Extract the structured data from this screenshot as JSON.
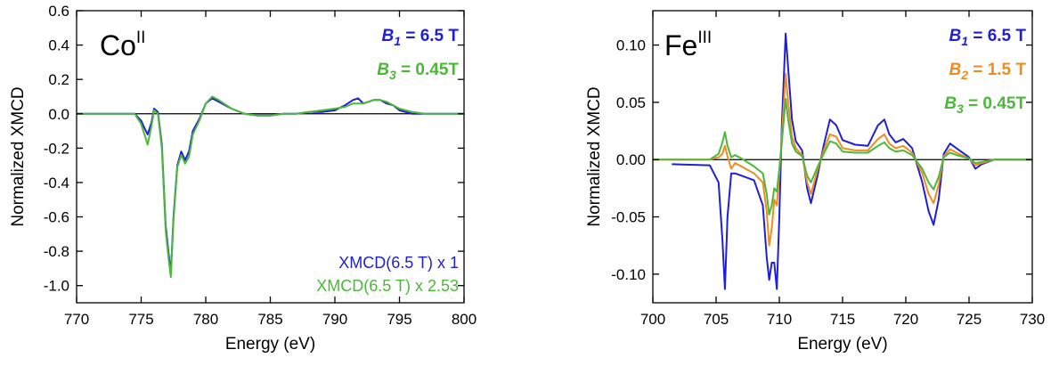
{
  "chart_data": [
    {
      "type": "line",
      "xlabel": "Energy (eV)",
      "ylabel": "Normalized XMCD",
      "xlim": [
        770,
        800
      ],
      "ylim": [
        -1.1,
        0.6
      ],
      "xticks": [
        770,
        775,
        780,
        785,
        790,
        795,
        800
      ],
      "xtick_labels": [
        "770",
        "775",
        "780",
        "785",
        "790",
        "795",
        "800"
      ],
      "yticks": [
        0.6,
        0.4,
        0.2,
        0.0,
        -0.2,
        -0.4,
        -0.6,
        -0.8,
        -1.0
      ],
      "ytick_labels": [
        "0.6",
        "0.4",
        "0.2",
        "0.0",
        "-0.2",
        "-0.4",
        "-0.6",
        "-0.8",
        "-1.0"
      ],
      "element": {
        "symbol": "Co",
        "sup": "II"
      },
      "field_labels": [
        {
          "prefix": "B",
          "sub": "1",
          "value": " =  6.5 T",
          "color": "#1f1fd6"
        },
        {
          "prefix": "B",
          "sub": "3",
          "value": " =  0.45T",
          "color": "#4cb83a"
        }
      ],
      "legend": [
        {
          "text": "XMCD(6.5 T) x 1",
          "color": "#1f1fd6"
        },
        {
          "text": "XMCD(6.5 T) x 2.53",
          "color": "#4cb83a"
        }
      ],
      "series": [
        {
          "color": "#1f1fd6",
          "x": [
            770,
            774.5,
            775.0,
            775.3,
            775.5,
            775.8,
            776.0,
            776.3,
            776.6,
            776.9,
            777.1,
            777.3,
            777.5,
            777.8,
            778.1,
            778.4,
            778.7,
            779.0,
            779.5,
            780.0,
            780.5,
            781.0,
            782.0,
            783.0,
            784.0,
            785.0,
            786.0,
            787.0,
            788.0,
            789.0,
            790.0,
            790.8,
            791.4,
            791.8,
            792.2,
            792.6,
            793.0,
            793.5,
            794.0,
            794.5,
            795.0,
            796.0,
            797.0,
            800
          ],
          "y": [
            0.0,
            0.0,
            -0.04,
            -0.09,
            -0.12,
            -0.05,
            0.03,
            0.01,
            -0.18,
            -0.65,
            -0.8,
            -0.93,
            -0.6,
            -0.3,
            -0.22,
            -0.27,
            -0.22,
            -0.1,
            -0.03,
            0.06,
            0.09,
            0.07,
            0.03,
            0.0,
            -0.01,
            -0.01,
            0.0,
            0.0,
            0.01,
            0.01,
            0.02,
            0.05,
            0.08,
            0.09,
            0.06,
            0.07,
            0.08,
            0.08,
            0.06,
            0.05,
            0.02,
            0.0,
            0.0,
            0.0
          ]
        },
        {
          "color": "#4cb83a",
          "x": [
            770,
            774.5,
            775.0,
            775.3,
            775.5,
            775.8,
            776.0,
            776.3,
            776.6,
            776.9,
            777.1,
            777.3,
            777.5,
            777.8,
            778.1,
            778.4,
            778.7,
            779.0,
            779.5,
            780.0,
            780.5,
            781.0,
            782.0,
            783.0,
            784.0,
            785.0,
            786.0,
            787.0,
            788.0,
            789.0,
            790.0,
            790.8,
            791.4,
            791.8,
            792.2,
            792.6,
            793.0,
            793.5,
            794.0,
            794.5,
            795.0,
            796.0,
            797.0,
            800
          ],
          "y": [
            0.0,
            0.0,
            -0.06,
            -0.13,
            -0.18,
            -0.07,
            0.02,
            0.0,
            -0.2,
            -0.68,
            -0.83,
            -0.95,
            -0.62,
            -0.31,
            -0.24,
            -0.29,
            -0.25,
            -0.12,
            -0.04,
            0.06,
            0.1,
            0.08,
            0.03,
            0.0,
            -0.01,
            -0.01,
            0.0,
            0.0,
            0.01,
            0.02,
            0.03,
            0.04,
            0.06,
            0.06,
            0.06,
            0.07,
            0.08,
            0.08,
            0.07,
            0.05,
            0.03,
            0.01,
            0.0,
            0.0
          ]
        }
      ]
    },
    {
      "type": "line",
      "xlabel": "Energy (eV)",
      "ylabel": "Normalized XMCD",
      "xlim": [
        700,
        730
      ],
      "ylim": [
        -0.125,
        0.13
      ],
      "xticks": [
        700,
        705,
        710,
        715,
        720,
        725,
        730
      ],
      "xtick_labels": [
        "700",
        "705",
        "710",
        "715",
        "720",
        "725",
        "730"
      ],
      "yticks": [
        0.1,
        0.05,
        0.0,
        -0.05,
        -0.1
      ],
      "ytick_labels": [
        "0.10",
        "0.05",
        "0.00",
        "-0.05",
        "-0.10"
      ],
      "element": {
        "symbol": "Fe",
        "sup": "III"
      },
      "field_labels": [
        {
          "prefix": "B",
          "sub": "1",
          "value": " =  6.5 T",
          "color": "#1f1fd6"
        },
        {
          "prefix": "B",
          "sub": "2",
          "value": " =  1.5 T",
          "color": "#f08c1e"
        },
        {
          "prefix": "B",
          "sub": "3",
          "value": " =  0.45T",
          "color": "#4cb83a"
        }
      ],
      "legend": [],
      "series": [
        {
          "color": "#1f1fd6",
          "x": [
            701.5,
            704.5,
            705.2,
            705.5,
            705.7,
            705.9,
            706.2,
            706.5,
            707.0,
            708.0,
            708.7,
            709.0,
            709.2,
            709.4,
            709.6,
            709.8,
            710.0,
            710.2,
            710.5,
            710.7,
            711.0,
            711.3,
            711.8,
            712.2,
            712.5,
            713.0,
            713.5,
            714.0,
            714.5,
            715.0,
            716.0,
            717.0,
            717.8,
            718.3,
            718.7,
            719.2,
            719.8,
            720.5,
            721.3,
            721.8,
            722.2,
            722.6,
            723.0,
            723.5,
            724.0,
            725.0,
            725.5,
            726.0,
            727.0,
            730.0
          ],
          "y": [
            -0.004,
            -0.005,
            -0.02,
            -0.07,
            -0.113,
            -0.05,
            -0.012,
            -0.012,
            -0.014,
            -0.018,
            -0.04,
            -0.085,
            -0.105,
            -0.09,
            -0.09,
            -0.113,
            -0.05,
            0.03,
            0.11,
            0.08,
            0.035,
            0.016,
            0.008,
            -0.025,
            -0.038,
            -0.015,
            0.012,
            0.035,
            0.03,
            0.017,
            0.013,
            0.012,
            0.03,
            0.035,
            0.022,
            0.015,
            0.018,
            0.01,
            -0.02,
            -0.045,
            -0.057,
            -0.035,
            0.005,
            0.014,
            0.01,
            0.002,
            -0.008,
            -0.004,
            0.0,
            0.0
          ]
        },
        {
          "color": "#f08c1e",
          "x": [
            700.0,
            704.5,
            705.2,
            705.5,
            705.7,
            705.9,
            706.2,
            706.5,
            707.0,
            708.0,
            708.7,
            709.0,
            709.2,
            709.4,
            709.6,
            709.8,
            710.0,
            710.2,
            710.5,
            710.7,
            711.0,
            711.3,
            711.8,
            712.2,
            712.5,
            713.0,
            713.5,
            714.0,
            714.5,
            715.0,
            716.0,
            717.0,
            717.8,
            718.3,
            718.7,
            719.2,
            719.8,
            720.5,
            721.3,
            721.8,
            722.2,
            722.6,
            723.0,
            723.5,
            724.0,
            725.0,
            725.5,
            726.0,
            727.0,
            730.0
          ],
          "y": [
            0.0,
            0.0,
            0.002,
            0.005,
            0.012,
            0.003,
            -0.008,
            -0.003,
            -0.006,
            -0.012,
            -0.02,
            -0.045,
            -0.075,
            -0.06,
            -0.035,
            -0.04,
            -0.012,
            0.02,
            0.075,
            0.05,
            0.02,
            0.01,
            0.004,
            -0.02,
            -0.03,
            -0.01,
            0.008,
            0.022,
            0.02,
            0.01,
            0.008,
            0.008,
            0.018,
            0.022,
            0.014,
            0.01,
            0.012,
            0.006,
            -0.012,
            -0.03,
            -0.038,
            -0.022,
            0.003,
            0.009,
            0.006,
            0.001,
            -0.005,
            -0.003,
            0.0,
            0.0
          ]
        },
        {
          "color": "#4cb83a",
          "x": [
            700.0,
            704.5,
            705.2,
            705.5,
            705.7,
            705.9,
            706.2,
            706.5,
            707.0,
            708.0,
            708.7,
            709.0,
            709.2,
            709.4,
            709.6,
            709.8,
            710.0,
            710.2,
            710.5,
            710.7,
            711.0,
            711.3,
            711.8,
            712.2,
            712.5,
            713.0,
            713.5,
            714.0,
            714.5,
            715.0,
            716.0,
            717.0,
            717.8,
            718.3,
            718.7,
            719.2,
            719.8,
            720.5,
            721.3,
            721.8,
            722.2,
            722.6,
            723.0,
            723.5,
            724.0,
            725.0,
            725.5,
            726.0,
            727.0,
            730.0
          ],
          "y": [
            0.0,
            0.0,
            0.005,
            0.015,
            0.024,
            0.012,
            0.002,
            0.004,
            0.001,
            -0.006,
            -0.012,
            -0.03,
            -0.048,
            -0.04,
            -0.025,
            -0.028,
            -0.008,
            0.015,
            0.053,
            0.035,
            0.014,
            0.007,
            0.003,
            -0.014,
            -0.02,
            -0.007,
            0.005,
            0.016,
            0.014,
            0.007,
            0.006,
            0.006,
            0.012,
            0.015,
            0.01,
            0.007,
            0.008,
            0.004,
            -0.008,
            -0.02,
            -0.026,
            -0.015,
            0.002,
            0.006,
            0.004,
            0.001,
            -0.003,
            -0.002,
            0.0,
            0.0
          ]
        }
      ]
    }
  ]
}
